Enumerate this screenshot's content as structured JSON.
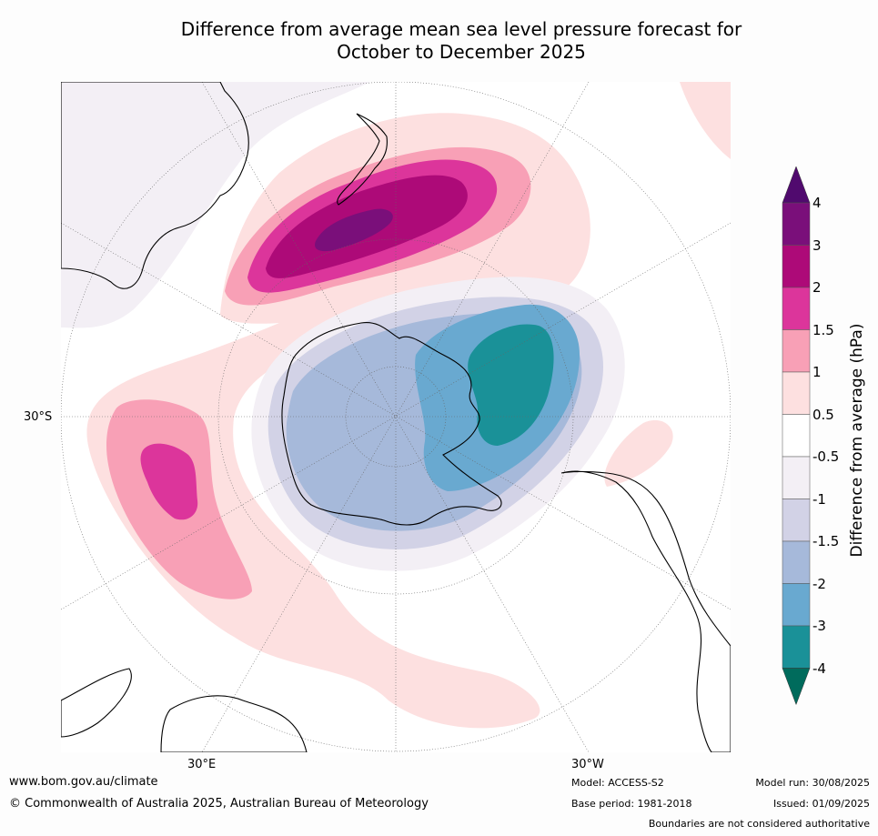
{
  "title_line1": "Difference from average mean sea level pressure forecast for",
  "title_line2": "October to December 2025",
  "map": {
    "projection": "south-polar-stereographic",
    "lat_label": "30°S",
    "lon_label_east": "30°E",
    "lon_label_west": "30°W",
    "regions": [
      {
        "name": "high-new-zealand",
        "level": "3 to 4"
      },
      {
        "name": "high-indian-ocean",
        "level": "1.5 to 2"
      },
      {
        "name": "low-antarctica",
        "level": "-1.5 to -2"
      },
      {
        "name": "low-amundsen-weddell",
        "level": "-3 to -4"
      },
      {
        "name": "low-south-atlantic-tail",
        "level": "-0.5 to -1"
      }
    ]
  },
  "colorbar": {
    "label": "Difference from average (hPa)",
    "ticks": [
      "4",
      "3",
      "2",
      "1.5",
      "1",
      "0.5",
      "-0.5",
      "-1",
      "-1.5",
      "-2",
      "-3",
      "-4"
    ],
    "colors": [
      "#7a0f7a",
      "#ad0a78",
      "#dc359b",
      "#f8a0b6",
      "#fde0e0",
      "#ffffff",
      "#f3eff5",
      "#d2d2e6",
      "#a6b9da",
      "#69a9d0",
      "#1a9198"
    ],
    "over_color": "#500a6e",
    "under_color": "#006b5c"
  },
  "footer": {
    "url": "www.bom.gov.au/climate",
    "copyright": "© Commonwealth of Australia 2025, Australian Bureau of Meteorology",
    "model": "Model: ACCESS-S2",
    "base_period": "Base period: 1981-2018",
    "model_run": "Model run: 30/08/2025",
    "issued": "Issued: 01/09/2025",
    "disclaimer": "Boundaries are not considered authoritative"
  }
}
